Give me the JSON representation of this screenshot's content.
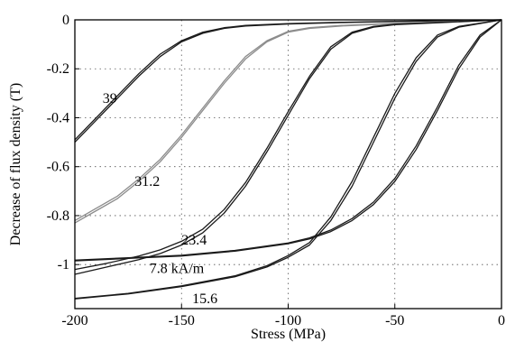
{
  "chart_data": {
    "type": "line",
    "xlabel": "Stress (MPa)",
    "ylabel": "Decrease of flux density (T)",
    "xlim": [
      -200,
      0
    ],
    "ylim": [
      -1.18,
      0
    ],
    "grid": true,
    "grid_style": "dotted",
    "x_ticks": [
      {
        "value": -200,
        "label": "-200"
      },
      {
        "value": -150,
        "label": "-150"
      },
      {
        "value": -100,
        "label": "-100"
      },
      {
        "value": -50,
        "label": "-50"
      },
      {
        "value": 0,
        "label": "0"
      }
    ],
    "y_ticks": [
      {
        "value": 0,
        "label": "0"
      },
      {
        "value": -0.2,
        "label": "-0.2"
      },
      {
        "value": -0.4,
        "label": "-0.4"
      },
      {
        "value": -0.6,
        "label": "-0.6"
      },
      {
        "value": -0.8,
        "label": "-0.8"
      },
      {
        "value": -1,
        "label": "-1"
      }
    ],
    "series": [
      {
        "label": "39",
        "color": "#1a1a1a",
        "label_at": [
          -187,
          -0.32
        ],
        "branches": [
          [
            [
              -200,
              -0.5
            ],
            [
              -190,
              -0.41
            ],
            [
              -180,
              -0.32
            ],
            [
              -170,
              -0.23
            ],
            [
              -160,
              -0.15
            ],
            [
              -150,
              -0.09
            ],
            [
              -140,
              -0.055
            ],
            [
              -130,
              -0.035
            ],
            [
              -120,
              -0.025
            ],
            [
              -100,
              -0.017
            ],
            [
              -75,
              -0.011
            ],
            [
              -50,
              -0.007
            ],
            [
              -25,
              -0.003
            ],
            [
              0,
              0
            ]
          ],
          [
            [
              -200,
              -0.49
            ],
            [
              -190,
              -0.4
            ],
            [
              -180,
              -0.31
            ],
            [
              -170,
              -0.22
            ],
            [
              -160,
              -0.14
            ],
            [
              -150,
              -0.085
            ],
            [
              -140,
              -0.05
            ],
            [
              -130,
              -0.032
            ],
            [
              -120,
              -0.023
            ],
            [
              -100,
              -0.015
            ],
            [
              -75,
              -0.01
            ],
            [
              -50,
              -0.006
            ],
            [
              -25,
              -0.003
            ],
            [
              0,
              0
            ]
          ]
        ]
      },
      {
        "label": "31.2",
        "color": "#8c8c8c",
        "label_at": [
          -172,
          -0.66
        ],
        "branches": [
          [
            [
              -200,
              -0.83
            ],
            [
              -190,
              -0.78
            ],
            [
              -180,
              -0.73
            ],
            [
              -170,
              -0.66
            ],
            [
              -160,
              -0.58
            ],
            [
              -150,
              -0.48
            ],
            [
              -140,
              -0.37
            ],
            [
              -130,
              -0.26
            ],
            [
              -120,
              -0.16
            ],
            [
              -110,
              -0.09
            ],
            [
              -100,
              -0.05
            ],
            [
              -90,
              -0.035
            ],
            [
              -75,
              -0.025
            ],
            [
              -50,
              -0.015
            ],
            [
              -25,
              -0.008
            ],
            [
              0,
              0
            ]
          ],
          [
            [
              -200,
              -0.82
            ],
            [
              -190,
              -0.77
            ],
            [
              -180,
              -0.72
            ],
            [
              -170,
              -0.65
            ],
            [
              -160,
              -0.57
            ],
            [
              -150,
              -0.47
            ],
            [
              -140,
              -0.36
            ],
            [
              -130,
              -0.25
            ],
            [
              -120,
              -0.15
            ],
            [
              -110,
              -0.085
            ],
            [
              -100,
              -0.047
            ],
            [
              -90,
              -0.032
            ],
            [
              -75,
              -0.023
            ],
            [
              -50,
              -0.014
            ],
            [
              -25,
              -0.007
            ],
            [
              0,
              0
            ]
          ]
        ]
      },
      {
        "label": "23.4",
        "color": "#1a1a1a",
        "label_at": [
          -150,
          -0.9
        ],
        "branches": [
          [
            [
              -200,
              -1.04
            ],
            [
              -185,
              -1.01
            ],
            [
              -170,
              -0.98
            ],
            [
              -160,
              -0.955
            ],
            [
              -150,
              -0.92
            ],
            [
              -140,
              -0.87
            ],
            [
              -130,
              -0.79
            ],
            [
              -120,
              -0.68
            ],
            [
              -110,
              -0.54
            ],
            [
              -100,
              -0.39
            ],
            [
              -90,
              -0.24
            ],
            [
              -80,
              -0.12
            ],
            [
              -70,
              -0.055
            ],
            [
              -60,
              -0.03
            ],
            [
              -50,
              -0.02
            ],
            [
              -25,
              -0.01
            ],
            [
              0,
              0
            ]
          ],
          [
            [
              -200,
              -1.02
            ],
            [
              -185,
              -0.995
            ],
            [
              -170,
              -0.965
            ],
            [
              -160,
              -0.94
            ],
            [
              -150,
              -0.905
            ],
            [
              -140,
              -0.855
            ],
            [
              -130,
              -0.775
            ],
            [
              -120,
              -0.665
            ],
            [
              -110,
              -0.525
            ],
            [
              -100,
              -0.375
            ],
            [
              -90,
              -0.23
            ],
            [
              -80,
              -0.11
            ],
            [
              -70,
              -0.05
            ],
            [
              -60,
              -0.027
            ],
            [
              -50,
              -0.018
            ],
            [
              -25,
              -0.009
            ],
            [
              0,
              0
            ]
          ]
        ]
      },
      {
        "label": "7.8 kA/m",
        "color": "#1a1a1a",
        "label_at": [
          -165,
          -1.015
        ],
        "branches": [
          [
            [
              -200,
              -0.985
            ],
            [
              -175,
              -0.975
            ],
            [
              -150,
              -0.965
            ],
            [
              -125,
              -0.945
            ],
            [
              -100,
              -0.915
            ],
            [
              -90,
              -0.895
            ],
            [
              -80,
              -0.865
            ],
            [
              -70,
              -0.82
            ],
            [
              -60,
              -0.755
            ],
            [
              -50,
              -0.66
            ],
            [
              -40,
              -0.53
            ],
            [
              -30,
              -0.37
            ],
            [
              -20,
              -0.2
            ],
            [
              -10,
              -0.07
            ],
            [
              0,
              0
            ]
          ],
          [
            [
              -200,
              -0.982
            ],
            [
              -175,
              -0.972
            ],
            [
              -150,
              -0.962
            ],
            [
              -125,
              -0.942
            ],
            [
              -100,
              -0.912
            ],
            [
              -90,
              -0.891
            ],
            [
              -80,
              -0.859
            ],
            [
              -70,
              -0.812
            ],
            [
              -60,
              -0.745
            ],
            [
              -50,
              -0.648
            ],
            [
              -40,
              -0.515
            ],
            [
              -30,
              -0.355
            ],
            [
              -20,
              -0.185
            ],
            [
              -10,
              -0.062
            ],
            [
              0,
              0
            ]
          ]
        ]
      },
      {
        "label": "15.6",
        "color": "#1a1a1a",
        "label_at": [
          -145,
          -1.14
        ],
        "branches": [
          [
            [
              -200,
              -1.14
            ],
            [
              -175,
              -1.12
            ],
            [
              -150,
              -1.09
            ],
            [
              -125,
              -1.05
            ],
            [
              -110,
              -1.01
            ],
            [
              -100,
              -0.97
            ],
            [
              -90,
              -0.92
            ],
            [
              -80,
              -0.82
            ],
            [
              -70,
              -0.68
            ],
            [
              -60,
              -0.5
            ],
            [
              -50,
              -0.32
            ],
            [
              -40,
              -0.17
            ],
            [
              -30,
              -0.07
            ],
            [
              -20,
              -0.03
            ],
            [
              0,
              0
            ]
          ],
          [
            [
              -200,
              -1.138
            ],
            [
              -175,
              -1.118
            ],
            [
              -150,
              -1.087
            ],
            [
              -125,
              -1.046
            ],
            [
              -110,
              -1.005
            ],
            [
              -100,
              -0.963
            ],
            [
              -90,
              -0.91
            ],
            [
              -80,
              -0.805
            ],
            [
              -70,
              -0.66
            ],
            [
              -60,
              -0.48
            ],
            [
              -50,
              -0.3
            ],
            [
              -40,
              -0.155
            ],
            [
              -30,
              -0.062
            ],
            [
              -20,
              -0.027
            ],
            [
              0,
              0
            ]
          ]
        ]
      }
    ]
  }
}
